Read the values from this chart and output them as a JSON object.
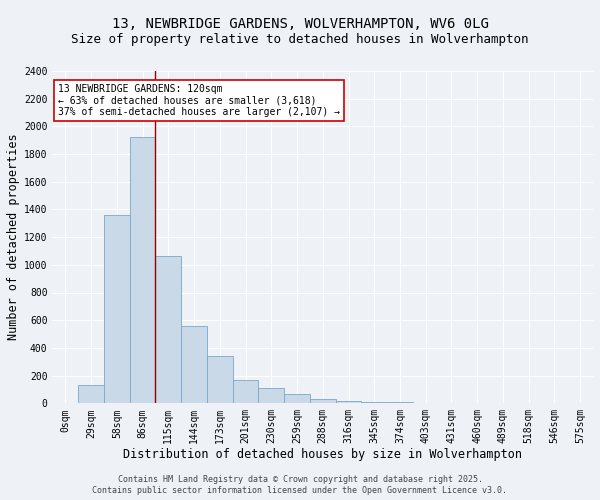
{
  "title": "13, NEWBRIDGE GARDENS, WOLVERHAMPTON, WV6 0LG",
  "subtitle": "Size of property relative to detached houses in Wolverhampton",
  "xlabel": "Distribution of detached houses by size in Wolverhampton",
  "ylabel": "Number of detached properties",
  "categories": [
    "0sqm",
    "29sqm",
    "58sqm",
    "86sqm",
    "115sqm",
    "144sqm",
    "173sqm",
    "201sqm",
    "230sqm",
    "259sqm",
    "288sqm",
    "316sqm",
    "345sqm",
    "374sqm",
    "403sqm",
    "431sqm",
    "460sqm",
    "489sqm",
    "518sqm",
    "546sqm",
    "575sqm"
  ],
  "values": [
    5,
    130,
    1360,
    1920,
    1060,
    560,
    340,
    170,
    110,
    65,
    30,
    20,
    12,
    8,
    5,
    3,
    3,
    3,
    2,
    2,
    3
  ],
  "bar_color": "#c9d9e8",
  "bar_edgecolor": "#7aa8cc",
  "vline_x_index": 4,
  "vline_color": "#990000",
  "annotation_text": "13 NEWBRIDGE GARDENS: 120sqm\n← 63% of detached houses are smaller (3,618)\n37% of semi-detached houses are larger (2,107) →",
  "annotation_box_color": "#ffffff",
  "annotation_box_edgecolor": "#cc0000",
  "ylim": [
    0,
    2400
  ],
  "yticks": [
    0,
    200,
    400,
    600,
    800,
    1000,
    1200,
    1400,
    1600,
    1800,
    2000,
    2200,
    2400
  ],
  "footer1": "Contains HM Land Registry data © Crown copyright and database right 2025.",
  "footer2": "Contains public sector information licensed under the Open Government Licence v3.0.",
  "bg_color": "#eef2f7",
  "plot_bg_color": "#eef2f7",
  "grid_color": "#ffffff",
  "title_fontsize": 10,
  "subtitle_fontsize": 9,
  "axis_label_fontsize": 8.5,
  "tick_fontsize": 7,
  "annotation_fontsize": 7,
  "footer_fontsize": 6
}
